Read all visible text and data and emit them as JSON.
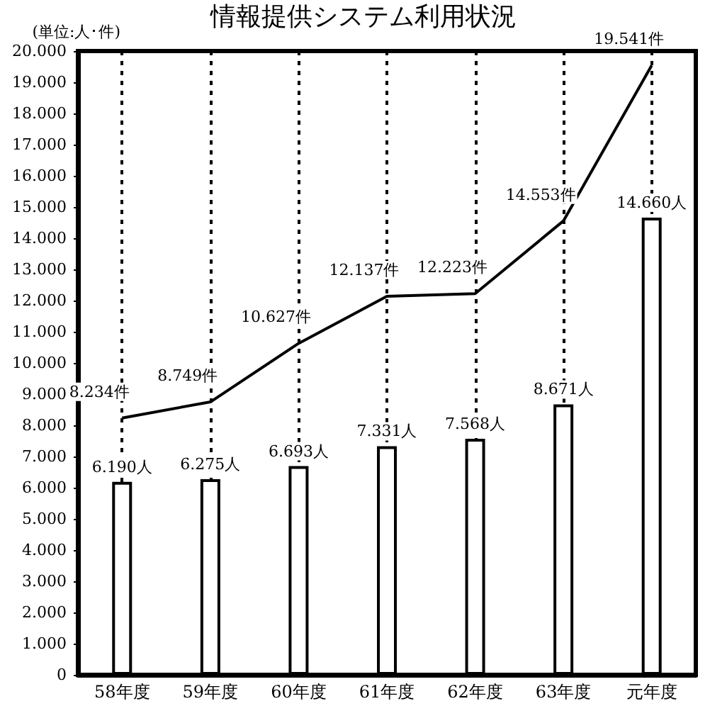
{
  "chart_data": {
    "type": "bar",
    "title": "情報提供システム利用状況",
    "ylabel": "(単位:人･件)",
    "categories": [
      "58年度",
      "59年度",
      "60年度",
      "61年度",
      "62年度",
      "63年度",
      "元年度"
    ],
    "series": [
      {
        "color": "#ffffff",
        "values": [
          6190,
          6275,
          6693,
          7331,
          7568,
          8671,
          14660
        ],
        "value_labels": [
          "6.190人",
          "6.275人",
          "6.693人",
          "7.331人",
          "7.568人",
          "8.671人",
          "14.660人"
        ]
      },
      {
        "type": "line",
        "color": "#000000",
        "marker": "none",
        "values": [
          8234,
          8749,
          10627,
          12137,
          12223,
          14553,
          19541
        ],
        "value_labels": [
          "8.234件",
          "8.749件",
          "10.627件",
          "12.137件",
          "12.223件",
          "14.553件",
          "19.541件"
        ]
      }
    ],
    "ylim": [
      0,
      20000
    ],
    "yticks": [
      0,
      {
        "value": 1000,
        "label": "1.000"
      },
      {
        "value": 2000,
        "label": "2.000"
      },
      {
        "value": 3000,
        "label": "3.000"
      },
      {
        "value": 4000,
        "label": "4.000"
      },
      {
        "value": 5000,
        "label": "5.000"
      },
      {
        "value": 6000,
        "label": "6.000"
      },
      {
        "value": 7000,
        "label": "7.000"
      },
      {
        "value": 8000,
        "label": "8.000"
      },
      {
        "value": 9000,
        "label": "9.000"
      },
      {
        "value": 10000,
        "label": "10.000"
      },
      {
        "value": 11000,
        "label": "11.000"
      },
      {
        "value": 12000,
        "label": "12.000"
      },
      {
        "value": 13000,
        "label": "13.000"
      },
      {
        "value": 14000,
        "label": "14.000"
      },
      {
        "value": 15000,
        "label": "15.000"
      },
      {
        "value": 16000,
        "label": "16.000"
      },
      {
        "value": 17000,
        "label": "17.000"
      },
      {
        "value": 18000,
        "label": "18.000"
      },
      {
        "value": 19000,
        "label": "19.000"
      },
      {
        "value": 20000,
        "label": "20.000"
      }
    ],
    "grid": "x"
  }
}
